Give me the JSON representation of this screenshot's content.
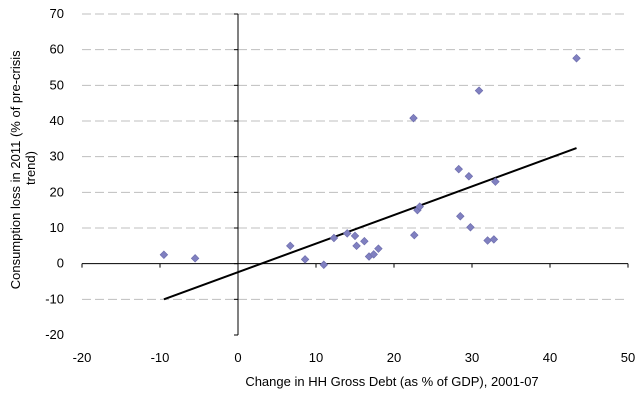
{
  "chart_data": {
    "type": "scatter",
    "title": "",
    "xlabel": "Change in HH Gross Debt (as % of GDP), 2001-07",
    "ylabel_lines": [
      "Consumption loss in 2011 (% of pre-crisis",
      "trend)"
    ],
    "xlim": [
      -20,
      50
    ],
    "ylim": [
      -20,
      70
    ],
    "x_ticks": [
      -20,
      -10,
      0,
      10,
      20,
      30,
      40,
      50
    ],
    "y_ticks": [
      -20,
      -10,
      0,
      10,
      20,
      30,
      40,
      50,
      60,
      70
    ],
    "grid": "horizontal dashed",
    "legend": "none",
    "colors": {
      "points": "#8080c0",
      "trendline": "#000000",
      "grid": "#bfbfbf",
      "axis": "#000000"
    },
    "points": [
      {
        "x": -9.5,
        "y": 2.5
      },
      {
        "x": -5.5,
        "y": 1.5
      },
      {
        "x": 6.7,
        "y": 5.0
      },
      {
        "x": 8.6,
        "y": 1.2
      },
      {
        "x": 11.0,
        "y": -0.3
      },
      {
        "x": 12.3,
        "y": 7.2
      },
      {
        "x": 14.0,
        "y": 8.5
      },
      {
        "x": 15.0,
        "y": 7.8
      },
      {
        "x": 15.2,
        "y": 5.0
      },
      {
        "x": 16.2,
        "y": 6.3
      },
      {
        "x": 16.8,
        "y": 2.0
      },
      {
        "x": 17.4,
        "y": 2.6
      },
      {
        "x": 18.0,
        "y": 4.2
      },
      {
        "x": 22.5,
        "y": 40.8
      },
      {
        "x": 22.6,
        "y": 8.0
      },
      {
        "x": 23.0,
        "y": 15.0
      },
      {
        "x": 23.3,
        "y": 16.0
      },
      {
        "x": 28.3,
        "y": 26.5
      },
      {
        "x": 28.5,
        "y": 13.3
      },
      {
        "x": 29.6,
        "y": 24.5
      },
      {
        "x": 29.8,
        "y": 10.2
      },
      {
        "x": 30.9,
        "y": 48.5
      },
      {
        "x": 32.0,
        "y": 6.5
      },
      {
        "x": 32.8,
        "y": 6.8
      },
      {
        "x": 33.0,
        "y": 23.0
      },
      {
        "x": 43.4,
        "y": 57.6
      }
    ],
    "trendline": {
      "x": [
        -9.5,
        43.4
      ],
      "y": [
        -10.0,
        32.4
      ]
    }
  }
}
